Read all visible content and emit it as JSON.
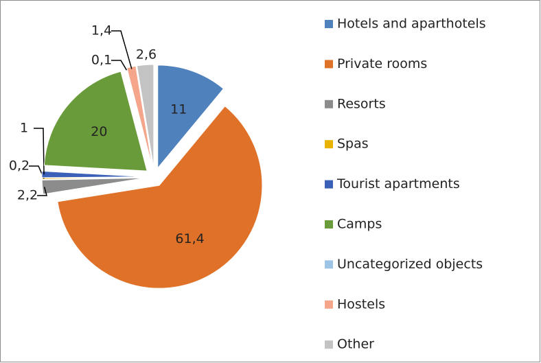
{
  "chart_data": {
    "type": "pie",
    "categories": [
      "Hotels and aparthotels",
      "Private rooms",
      "Resorts",
      "Spas",
      "Tourist apartments",
      "Camps",
      "Uncategorized objects",
      "Hostels",
      "Other"
    ],
    "values": [
      11,
      61.4,
      2.2,
      0.2,
      1,
      20,
      0.1,
      1.4,
      2.6
    ],
    "value_labels": [
      "11",
      "61,4",
      "2,2",
      "0,2",
      "1",
      "20",
      "0,1",
      "1,4",
      "2,6"
    ],
    "colors": [
      "#4f81bd",
      "#e07128",
      "#8c8c8c",
      "#e8b200",
      "#3b60b8",
      "#6a9b3a",
      "#9dc3e6",
      "#f4a58a",
      "#c3c3c3"
    ],
    "legend": "right"
  }
}
